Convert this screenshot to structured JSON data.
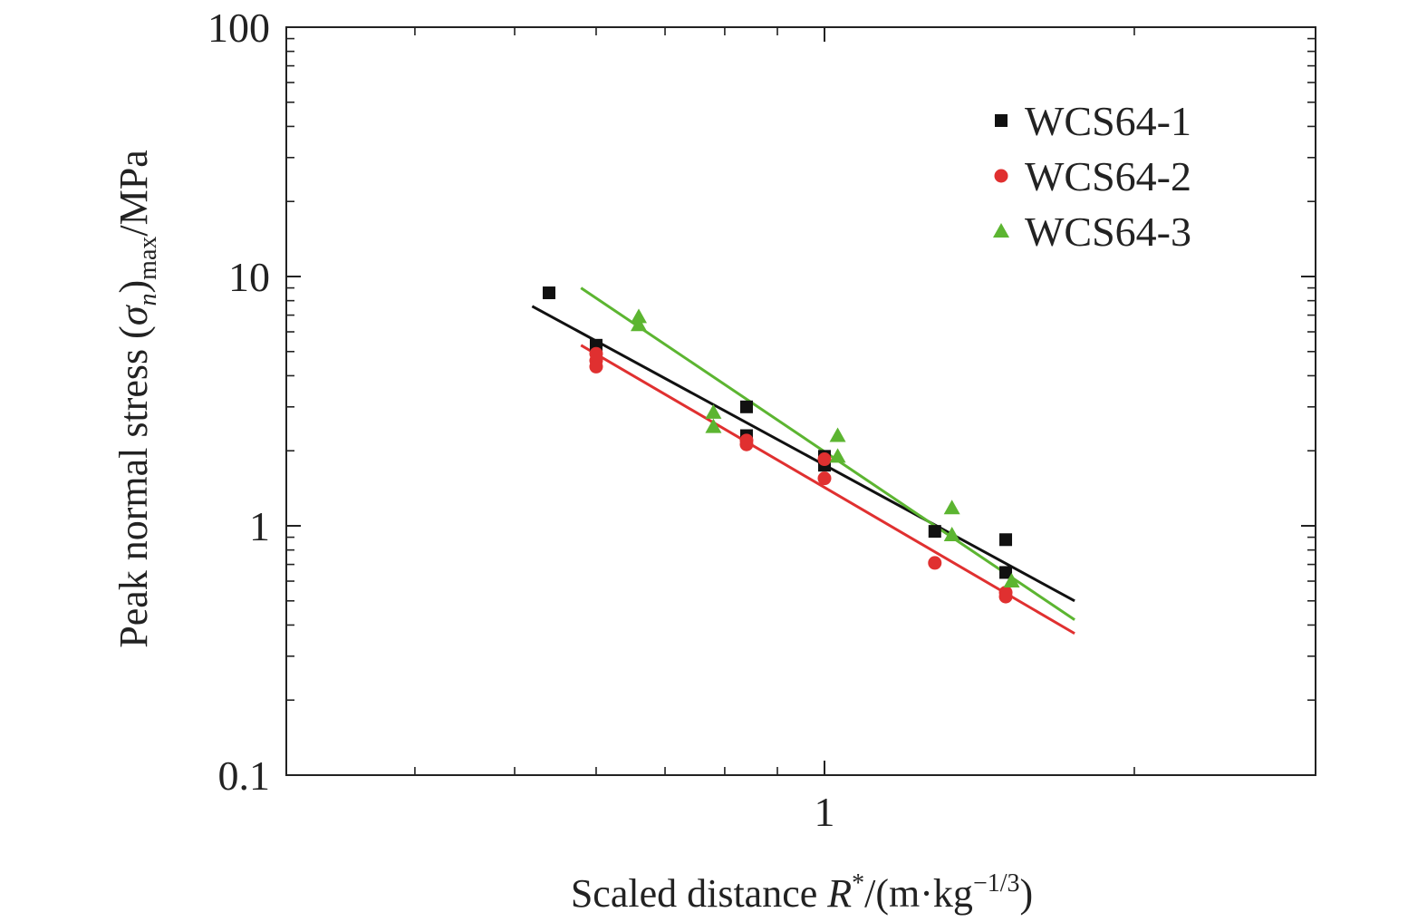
{
  "chart_data": {
    "type": "scatter",
    "xscale": "log",
    "yscale": "log",
    "xlim": [
      0.3,
      3.0
    ],
    "ylim": [
      0.1,
      100
    ],
    "x_ticks": [
      1
    ],
    "x_tick_labels": [
      "1"
    ],
    "y_ticks": [
      0.1,
      1,
      10,
      100
    ],
    "y_tick_labels": [
      "0.1",
      "1",
      "10",
      "100"
    ],
    "xlabel": {
      "prefix": "Scaled distance ",
      "var": "R",
      "sup": "*",
      "unit": "/(m·kg",
      "exp": "−1/3",
      "close": ")"
    },
    "ylabel": {
      "prefix": "Peak normal stress (",
      "var": "σ",
      "sub_var": "n",
      "close": ")",
      "sub": "max",
      "unit": "/MPa"
    },
    "grid": false,
    "legend_position": "top-right",
    "series": [
      {
        "name": "WCS64-1",
        "marker": "square",
        "color": "#111111",
        "points": [
          [
            0.54,
            8.6
          ],
          [
            0.6,
            5.3
          ],
          [
            0.84,
            3.0
          ],
          [
            0.84,
            2.3
          ],
          [
            1.0,
            1.9
          ],
          [
            1.0,
            1.75
          ],
          [
            1.28,
            0.95
          ],
          [
            1.5,
            0.88
          ],
          [
            1.5,
            0.65
          ]
        ],
        "fit": [
          [
            0.52,
            7.6
          ],
          [
            1.75,
            0.5
          ]
        ]
      },
      {
        "name": "WCS64-2",
        "marker": "circle",
        "color": "#e03030",
        "points": [
          [
            0.6,
            4.9
          ],
          [
            0.6,
            4.6
          ],
          [
            0.6,
            4.35
          ],
          [
            0.84,
            2.2
          ],
          [
            0.84,
            2.12
          ],
          [
            1.0,
            1.85
          ],
          [
            1.0,
            1.55
          ],
          [
            1.28,
            0.71
          ],
          [
            1.5,
            0.54
          ],
          [
            1.5,
            0.52
          ]
        ],
        "fit": [
          [
            0.58,
            5.3
          ],
          [
            1.75,
            0.37
          ]
        ]
      },
      {
        "name": "WCS64-3",
        "marker": "triangle",
        "color": "#5cb531",
        "points": [
          [
            0.66,
            6.9
          ],
          [
            0.66,
            6.4
          ],
          [
            0.78,
            2.85
          ],
          [
            0.78,
            2.5
          ],
          [
            1.03,
            2.3
          ],
          [
            1.03,
            1.9
          ],
          [
            1.33,
            1.18
          ],
          [
            1.33,
            0.92
          ],
          [
            1.52,
            0.6
          ]
        ],
        "fit": [
          [
            0.58,
            9.0
          ],
          [
            1.75,
            0.42
          ]
        ]
      }
    ]
  }
}
